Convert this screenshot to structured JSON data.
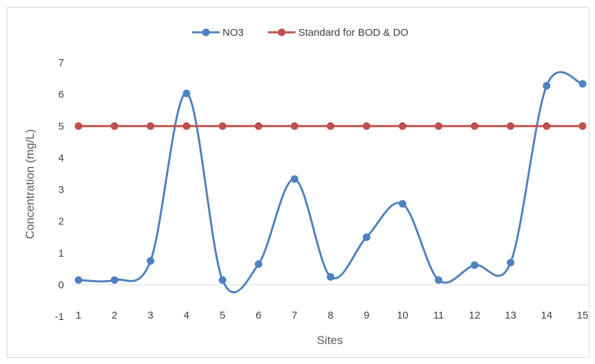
{
  "chart_data": {
    "type": "line",
    "title": "",
    "xlabel": "Sites",
    "ylabel": "Concentration (mg/L)",
    "categories": [
      "1",
      "2",
      "3",
      "4",
      "5",
      "6",
      "7",
      "8",
      "9",
      "10",
      "11",
      "12",
      "13",
      "14",
      "15"
    ],
    "ylim": [
      -1,
      7
    ],
    "yticks": [
      "-1",
      "0",
      "1",
      "2",
      "3",
      "4",
      "5",
      "6",
      "7"
    ],
    "grid": false,
    "legend_position": "top",
    "series": [
      {
        "name": "NO3",
        "color": "#4f81bd",
        "smooth": true,
        "values": [
          0.15,
          0.15,
          0.75,
          6.03,
          0.15,
          0.65,
          3.33,
          0.25,
          1.5,
          2.55,
          0.15,
          0.62,
          0.7,
          6.27,
          6.33
        ]
      },
      {
        "name": "Standard for BOD & DO",
        "color": "#c0504d",
        "smooth": false,
        "values": [
          5,
          5,
          5,
          5,
          5,
          5,
          5,
          5,
          5,
          5,
          5,
          5,
          5,
          5,
          5
        ]
      }
    ]
  }
}
